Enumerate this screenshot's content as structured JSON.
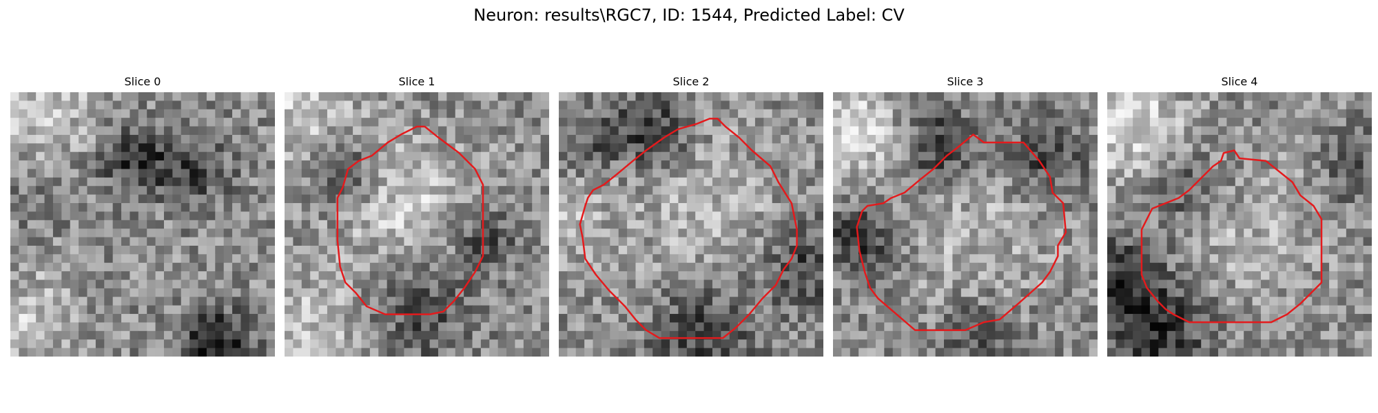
{
  "figure": {
    "title": "Neuron: results\\RGC7, ID: 1544, Predicted Label: CV"
  },
  "panels": [
    {
      "title": "Slice 0",
      "has_contour": false
    },
    {
      "title": "Slice 1",
      "has_contour": true
    },
    {
      "title": "Slice 2",
      "has_contour": true
    },
    {
      "title": "Slice 3",
      "has_contour": true
    },
    {
      "title": "Slice 4",
      "has_contour": true
    }
  ],
  "colors": {
    "contour": "#e41a1c"
  }
}
